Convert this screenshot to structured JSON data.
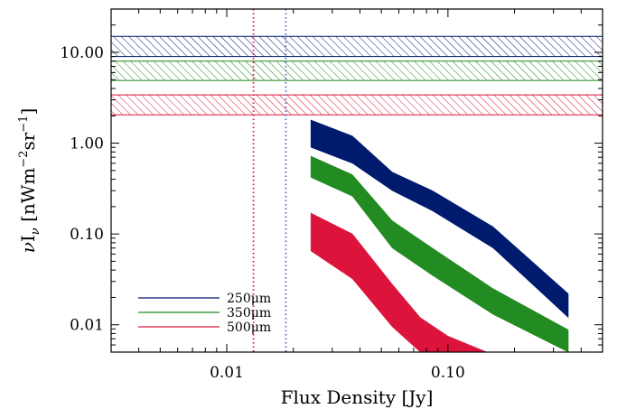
{
  "chart_data": {
    "type": "area",
    "title": "",
    "xlabel": "Flux Density [Jy]",
    "ylabel": "νI_ν [nWm^-2 sr^-1]",
    "ylabel_parts": {
      "nu": "ν",
      "I": "I",
      "sub": "ν",
      "open": " [nWm",
      "exp1": "−2",
      "mid": "sr",
      "exp2": "−1",
      "close": "]"
    },
    "x_scale": "log",
    "y_scale": "log",
    "xlim": [
      0.003,
      0.5
    ],
    "ylim": [
      0.005,
      30
    ],
    "x_ticks": [
      {
        "value": 0.01,
        "label": "0.01"
      },
      {
        "value": 0.1,
        "label": "0.10"
      }
    ],
    "y_ticks": [
      {
        "value": 0.01,
        "label": "0.01"
      },
      {
        "value": 0.1,
        "label": "0.10"
      },
      {
        "value": 1,
        "label": "1.00"
      },
      {
        "value": 10,
        "label": "10.00"
      }
    ],
    "series": [
      {
        "name": "250μm",
        "color": "#001a6e",
        "x": [
          0.024,
          0.037,
          0.056,
          0.085,
          0.16,
          0.35
        ],
        "lower": [
          0.9,
          0.6,
          0.3,
          0.18,
          0.07,
          0.012
        ],
        "upper": [
          1.8,
          1.2,
          0.48,
          0.3,
          0.12,
          0.022
        ],
        "band": [
          9.0,
          15.0
        ]
      },
      {
        "name": "350μm",
        "color": "#228b22",
        "x": [
          0.024,
          0.037,
          0.056,
          0.085,
          0.16,
          0.35
        ],
        "lower": [
          0.42,
          0.26,
          0.07,
          0.035,
          0.013,
          0.005
        ],
        "upper": [
          0.72,
          0.45,
          0.14,
          0.07,
          0.025,
          0.0088
        ],
        "band": [
          4.9,
          8.0
        ]
      },
      {
        "name": "500μm",
        "color": "#dc143c",
        "x": [
          0.024,
          0.037,
          0.056,
          0.075,
          0.1,
          0.15
        ],
        "lower": [
          0.065,
          0.032,
          0.0095,
          0.005,
          0.005,
          0.005
        ],
        "upper": [
          0.17,
          0.1,
          0.028,
          0.012,
          0.0075,
          0.005
        ],
        "band": [
          2.05,
          3.4
        ]
      }
    ],
    "vlines": [
      {
        "x": 0.0132,
        "color": "#dc143c",
        "style": "dotted"
      },
      {
        "x": 0.0185,
        "color": "#4a6fb5",
        "style": "dotted"
      }
    ],
    "legend": {
      "placement": "bottom-left",
      "entries": [
        {
          "label": "250μm",
          "color": "#001a6e"
        },
        {
          "label": "350μm",
          "color": "#228b22"
        },
        {
          "label": "500μm",
          "color": "#dc143c"
        }
      ]
    },
    "grid": false
  }
}
